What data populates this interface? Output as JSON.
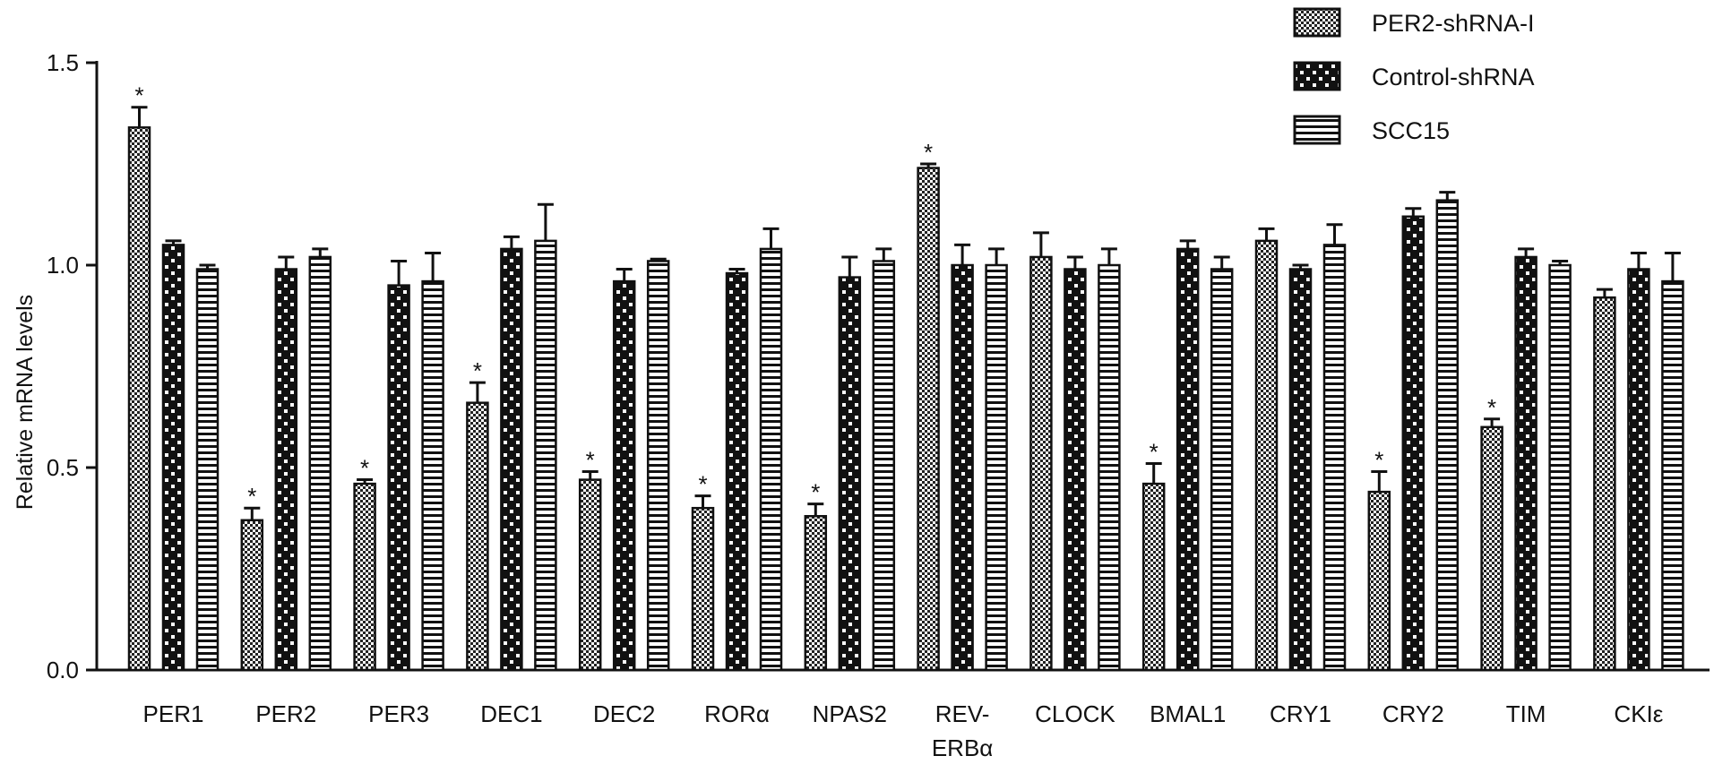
{
  "chart_data": {
    "type": "bar",
    "title": "",
    "xlabel": "",
    "ylabel": "Relative mRNA levels",
    "ylim": [
      0,
      1.5
    ],
    "yticks": [
      "0.0",
      "0.5",
      "1.0",
      "1.5"
    ],
    "grid": false,
    "legend_position": "top-right",
    "categories": [
      [
        "PER1"
      ],
      [
        "PER2"
      ],
      [
        "PER3"
      ],
      [
        "DEC1"
      ],
      [
        "DEC2"
      ],
      [
        "RORα"
      ],
      [
        "NPAS2"
      ],
      [
        "REV-",
        "ERBα"
      ],
      [
        "CLOCK"
      ],
      [
        "BMAL1"
      ],
      [
        "CRY1"
      ],
      [
        "CRY2"
      ],
      [
        "TIM"
      ],
      [
        "CKIε"
      ]
    ],
    "series": [
      {
        "name": "PER2-shRNA-I",
        "pattern": "checker-fine",
        "values": [
          1.34,
          0.37,
          0.46,
          0.66,
          0.47,
          0.4,
          0.38,
          1.24,
          1.02,
          0.46,
          1.06,
          0.44,
          0.6,
          0.92
        ],
        "errors": [
          0.05,
          0.03,
          0.01,
          0.05,
          0.02,
          0.03,
          0.03,
          0.01,
          0.06,
          0.05,
          0.03,
          0.05,
          0.02,
          0.02
        ]
      },
      {
        "name": "Control-shRNA",
        "pattern": "checker-coarse",
        "values": [
          1.05,
          0.99,
          0.95,
          1.04,
          0.96,
          0.98,
          0.97,
          1.0,
          0.99,
          1.04,
          0.99,
          1.12,
          1.02,
          0.99
        ],
        "errors": [
          0.01,
          0.03,
          0.06,
          0.03,
          0.03,
          0.01,
          0.05,
          0.05,
          0.03,
          0.02,
          0.01,
          0.02,
          0.02,
          0.04
        ]
      },
      {
        "name": "SCC15",
        "pattern": "horizontal-stripes",
        "values": [
          0.99,
          1.02,
          0.96,
          1.06,
          1.01,
          1.04,
          1.01,
          1.0,
          1.0,
          0.99,
          1.05,
          1.16,
          1.0,
          0.96
        ],
        "errors": [
          0.01,
          0.02,
          0.07,
          0.09,
          0.005,
          0.05,
          0.03,
          0.04,
          0.04,
          0.03,
          0.05,
          0.02,
          0.01,
          0.07
        ]
      }
    ],
    "significance": {
      "symbol": "*",
      "series": "PER2-shRNA-I",
      "categories": [
        "PER1",
        "PER2",
        "PER3",
        "DEC1",
        "DEC2",
        "RORα",
        "NPAS2",
        "REV-ERBα",
        "BMAL1",
        "CRY2",
        "TIM"
      ]
    }
  }
}
